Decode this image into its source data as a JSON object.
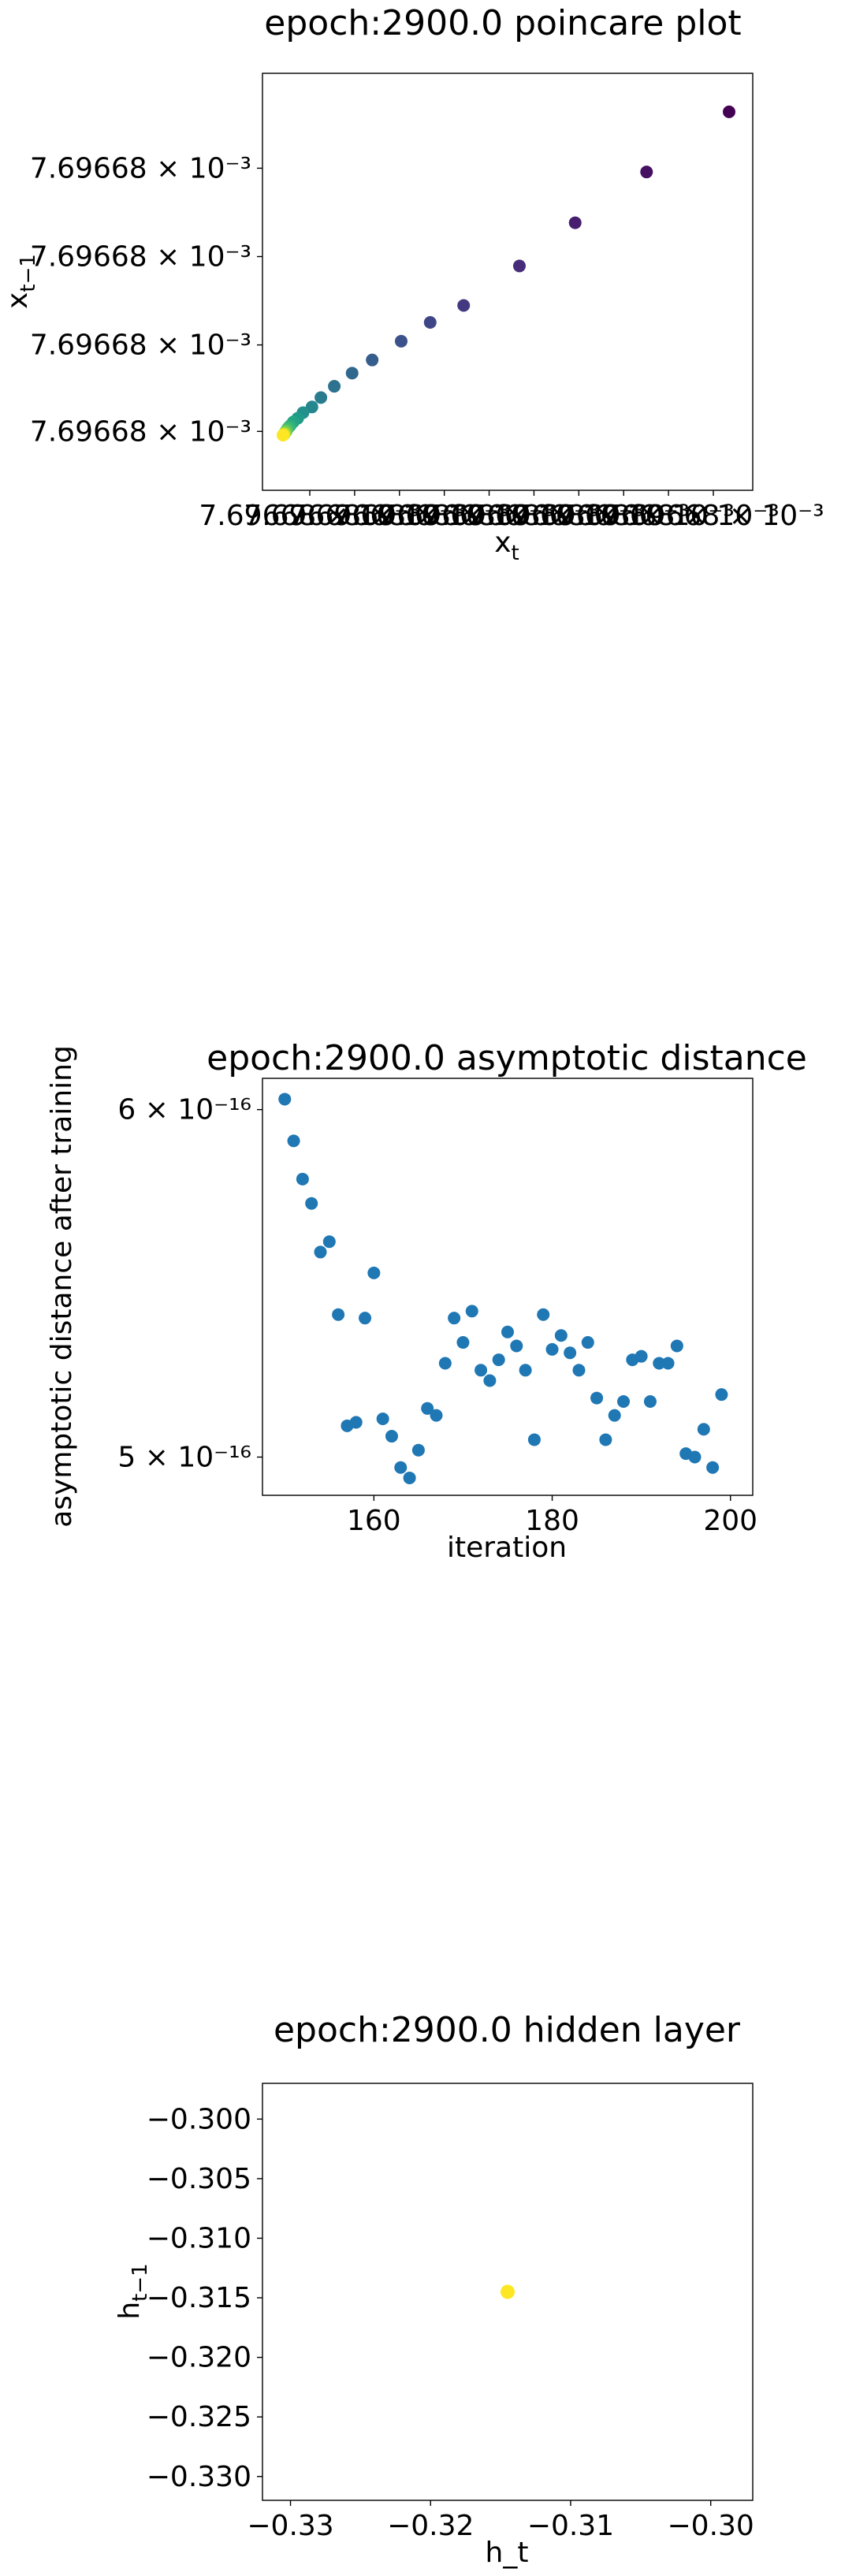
{
  "chart_data": [
    {
      "type": "scatter",
      "title": "epoch:2900.0 poincare plot",
      "xlabel": "x_t",
      "ylabel": "x_{t−1}",
      "x_tick_labels": [
        "7.69668 × 10⁻³",
        "7.69668 × 10⁻³",
        "7.69668 × 10⁻³",
        "7.69668 × 10⁻³",
        "7.69668 × 10⁻³",
        "7.69668 × 10⁻³",
        "7.69668 × 10⁻³",
        "7.69668 × 10⁻³",
        "7.69668 × 10⁻³",
        "7.69668 × 10⁻³"
      ],
      "y_tick_labels": [
        "7.69668 × 10⁻³",
        "7.69668 × 10⁻³",
        "7.69668 × 10⁻³",
        "7.69668 × 10⁻³"
      ],
      "xlim": [
        0,
        1
      ],
      "ylim": [
        0,
        1
      ],
      "color_map": "viridis (iteration: early = dark purple, late = yellow)",
      "points": [
        [
          1.0,
          0.95
        ],
        [
          0.815,
          0.79
        ],
        [
          0.655,
          0.655
        ],
        [
          0.53,
          0.54
        ],
        [
          0.405,
          0.435
        ],
        [
          0.33,
          0.39
        ],
        [
          0.265,
          0.34
        ],
        [
          0.2,
          0.29
        ],
        [
          0.155,
          0.255
        ],
        [
          0.115,
          0.22
        ],
        [
          0.085,
          0.19
        ],
        [
          0.065,
          0.165
        ],
        [
          0.045,
          0.15
        ],
        [
          0.033,
          0.135
        ],
        [
          0.023,
          0.125
        ],
        [
          0.016,
          0.115
        ],
        [
          0.012,
          0.11
        ],
        [
          0.009,
          0.105
        ],
        [
          0.007,
          0.1
        ],
        [
          0.005,
          0.098
        ],
        [
          0.004,
          0.095
        ],
        [
          0.003,
          0.093
        ],
        [
          0.002,
          0.092
        ],
        [
          0.001,
          0.091
        ],
        [
          0.0,
          0.09
        ]
      ]
    },
    {
      "type": "scatter",
      "title": "epoch:2900.0 asymptotic distance",
      "xlabel": "iteration",
      "ylabel": "asymptotic distance after training",
      "xlim": [
        147.5,
        202.5
      ],
      "ylim": [
        4.89e-16,
        6.09e-16
      ],
      "x_ticks": [
        160,
        180,
        200
      ],
      "y_ticks": [
        {
          "value": 5e-16,
          "label": "5 × 10⁻¹⁶"
        },
        {
          "value": 6e-16,
          "label": "6 × 10⁻¹⁶"
        }
      ],
      "color": "#1f77b4",
      "x": [
        150,
        151,
        152,
        153,
        154,
        155,
        156,
        157,
        158,
        159,
        160,
        161,
        162,
        163,
        164,
        165,
        166,
        167,
        168,
        169,
        170,
        171,
        172,
        173,
        174,
        175,
        176,
        177,
        178,
        179,
        180,
        181,
        182,
        183,
        184,
        185,
        186,
        187,
        188,
        189,
        190,
        191,
        192,
        193,
        194,
        195,
        196,
        197,
        198,
        199
      ],
      "y": [
        6.03e-16,
        5.91e-16,
        5.8e-16,
        5.73e-16,
        5.59e-16,
        5.62e-16,
        5.41e-16,
        5.09e-16,
        5.1e-16,
        5.4e-16,
        5.53e-16,
        5.11e-16,
        5.06e-16,
        4.97e-16,
        4.94e-16,
        5.02e-16,
        5.14e-16,
        5.12e-16,
        5.27e-16,
        5.4e-16,
        5.33e-16,
        5.42e-16,
        5.25e-16,
        5.22e-16,
        5.28e-16,
        5.36e-16,
        5.32e-16,
        5.25e-16,
        5.05e-16,
        5.41e-16,
        5.31e-16,
        5.35e-16,
        5.3e-16,
        5.25e-16,
        5.33e-16,
        5.17e-16,
        5.05e-16,
        5.12e-16,
        5.16e-16,
        5.28e-16,
        5.29e-16,
        5.16e-16,
        5.27e-16,
        5.27e-16,
        5.32e-16,
        5.01e-16,
        5e-16,
        5.08e-16,
        4.97e-16,
        5.18e-16
      ]
    },
    {
      "type": "scatter",
      "title": "epoch:2900.0 hidden layer",
      "xlabel": "h_t",
      "ylabel": "h_{t−1}",
      "xlim": [
        -0.332,
        -0.297
      ],
      "ylim": [
        -0.332,
        -0.297
      ],
      "x_ticks": [
        -0.33,
        -0.32,
        -0.31,
        -0.3
      ],
      "x_tick_labels": [
        "−0.33",
        "−0.32",
        "−0.31",
        "−0.30"
      ],
      "y_ticks": [
        -0.3,
        -0.305,
        -0.31,
        -0.315,
        -0.32,
        -0.325,
        -0.33
      ],
      "y_tick_labels": [
        "−0.300",
        "−0.305",
        "−0.310",
        "−0.315",
        "−0.320",
        "−0.325",
        "−0.330"
      ],
      "color": "#fde725",
      "x": [
        -0.3145
      ],
      "y": [
        -0.3145
      ]
    }
  ]
}
